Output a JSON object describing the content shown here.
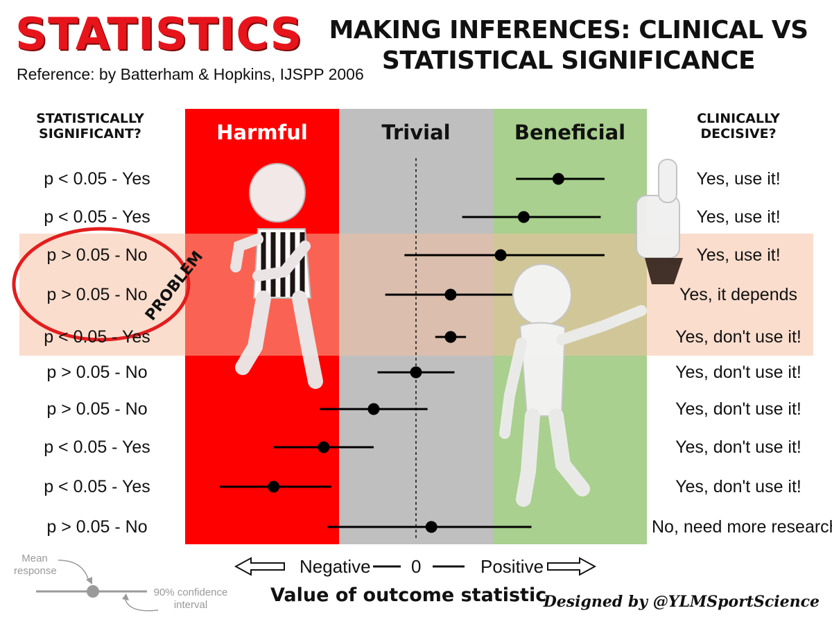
{
  "header": {
    "title": "STATISTICS",
    "reference": "Reference: by Batterham & Hopkins, IJSPP 2006",
    "subtitle_line1": "Making Inferences: Clinical vs",
    "subtitle_line2": "Statistical Significance"
  },
  "columns": {
    "left_heading_line1": "Statistically",
    "left_heading_line2": "Significant?",
    "right_heading_line1": "Clinically",
    "right_heading_line2": "Decisive?"
  },
  "zones": {
    "harmful": "Harmful",
    "trivial": "Trivial",
    "beneficial": "Beneficial",
    "colors": {
      "harmful": "#fe0000",
      "trivial": "#bfbfbf",
      "beneficial": "#a9d08e"
    }
  },
  "rows": [
    {
      "p": "p < 0.05 - Yes",
      "clinical": "Yes, use it!",
      "mean": 1.85,
      "low": 1.3,
      "high": 2.45
    },
    {
      "p": "p < 0.05 - Yes",
      "clinical": "Yes, use it!",
      "mean": 1.4,
      "low": 0.6,
      "high": 2.4
    },
    {
      "p": "p > 0.05 - No",
      "clinical": "Yes, use it!",
      "mean": 1.1,
      "low": -0.15,
      "high": 2.45
    },
    {
      "p": "p > 0.05 - No",
      "clinical": "Yes, it depends",
      "mean": 0.45,
      "low": -0.4,
      "high": 1.25
    },
    {
      "p": "p < 0.05 - Yes",
      "clinical": "Yes, don't use it!",
      "mean": 0.45,
      "low": 0.25,
      "high": 0.65
    },
    {
      "p": "p > 0.05 -   No",
      "clinical": "Yes, don't use it!",
      "mean": 0.0,
      "low": -0.5,
      "high": 0.5
    },
    {
      "p": "p > 0.05 - No",
      "clinical": "Yes, don't use it!",
      "mean": -0.55,
      "low": -1.25,
      "high": 0.15
    },
    {
      "p": "p < 0.05 - Yes",
      "clinical": "Yes, don't use it!",
      "mean": -1.2,
      "low": -1.85,
      "high": -0.55
    },
    {
      "p": "p < 0.05 - Yes",
      "clinical": "Yes, don't use it!",
      "mean": -1.85,
      "low": -2.55,
      "high": -1.1
    },
    {
      "p": "p > 0.05 - No",
      "clinical": "No, need more research",
      "mean": 0.2,
      "low": -1.15,
      "high": 1.5
    }
  ],
  "highlight": {
    "label": "PROBLEM",
    "color": "#e31d1d"
  },
  "axis": {
    "negative": "Negative",
    "zero": "0",
    "positive": "Positive",
    "title": "Value of outcome statistic"
  },
  "key": {
    "mean_line1": "Mean",
    "mean_line2": "response",
    "ci_line1": "90% confidence",
    "ci_line2": "interval"
  },
  "credit": "Designed by @YLMSportScience"
}
